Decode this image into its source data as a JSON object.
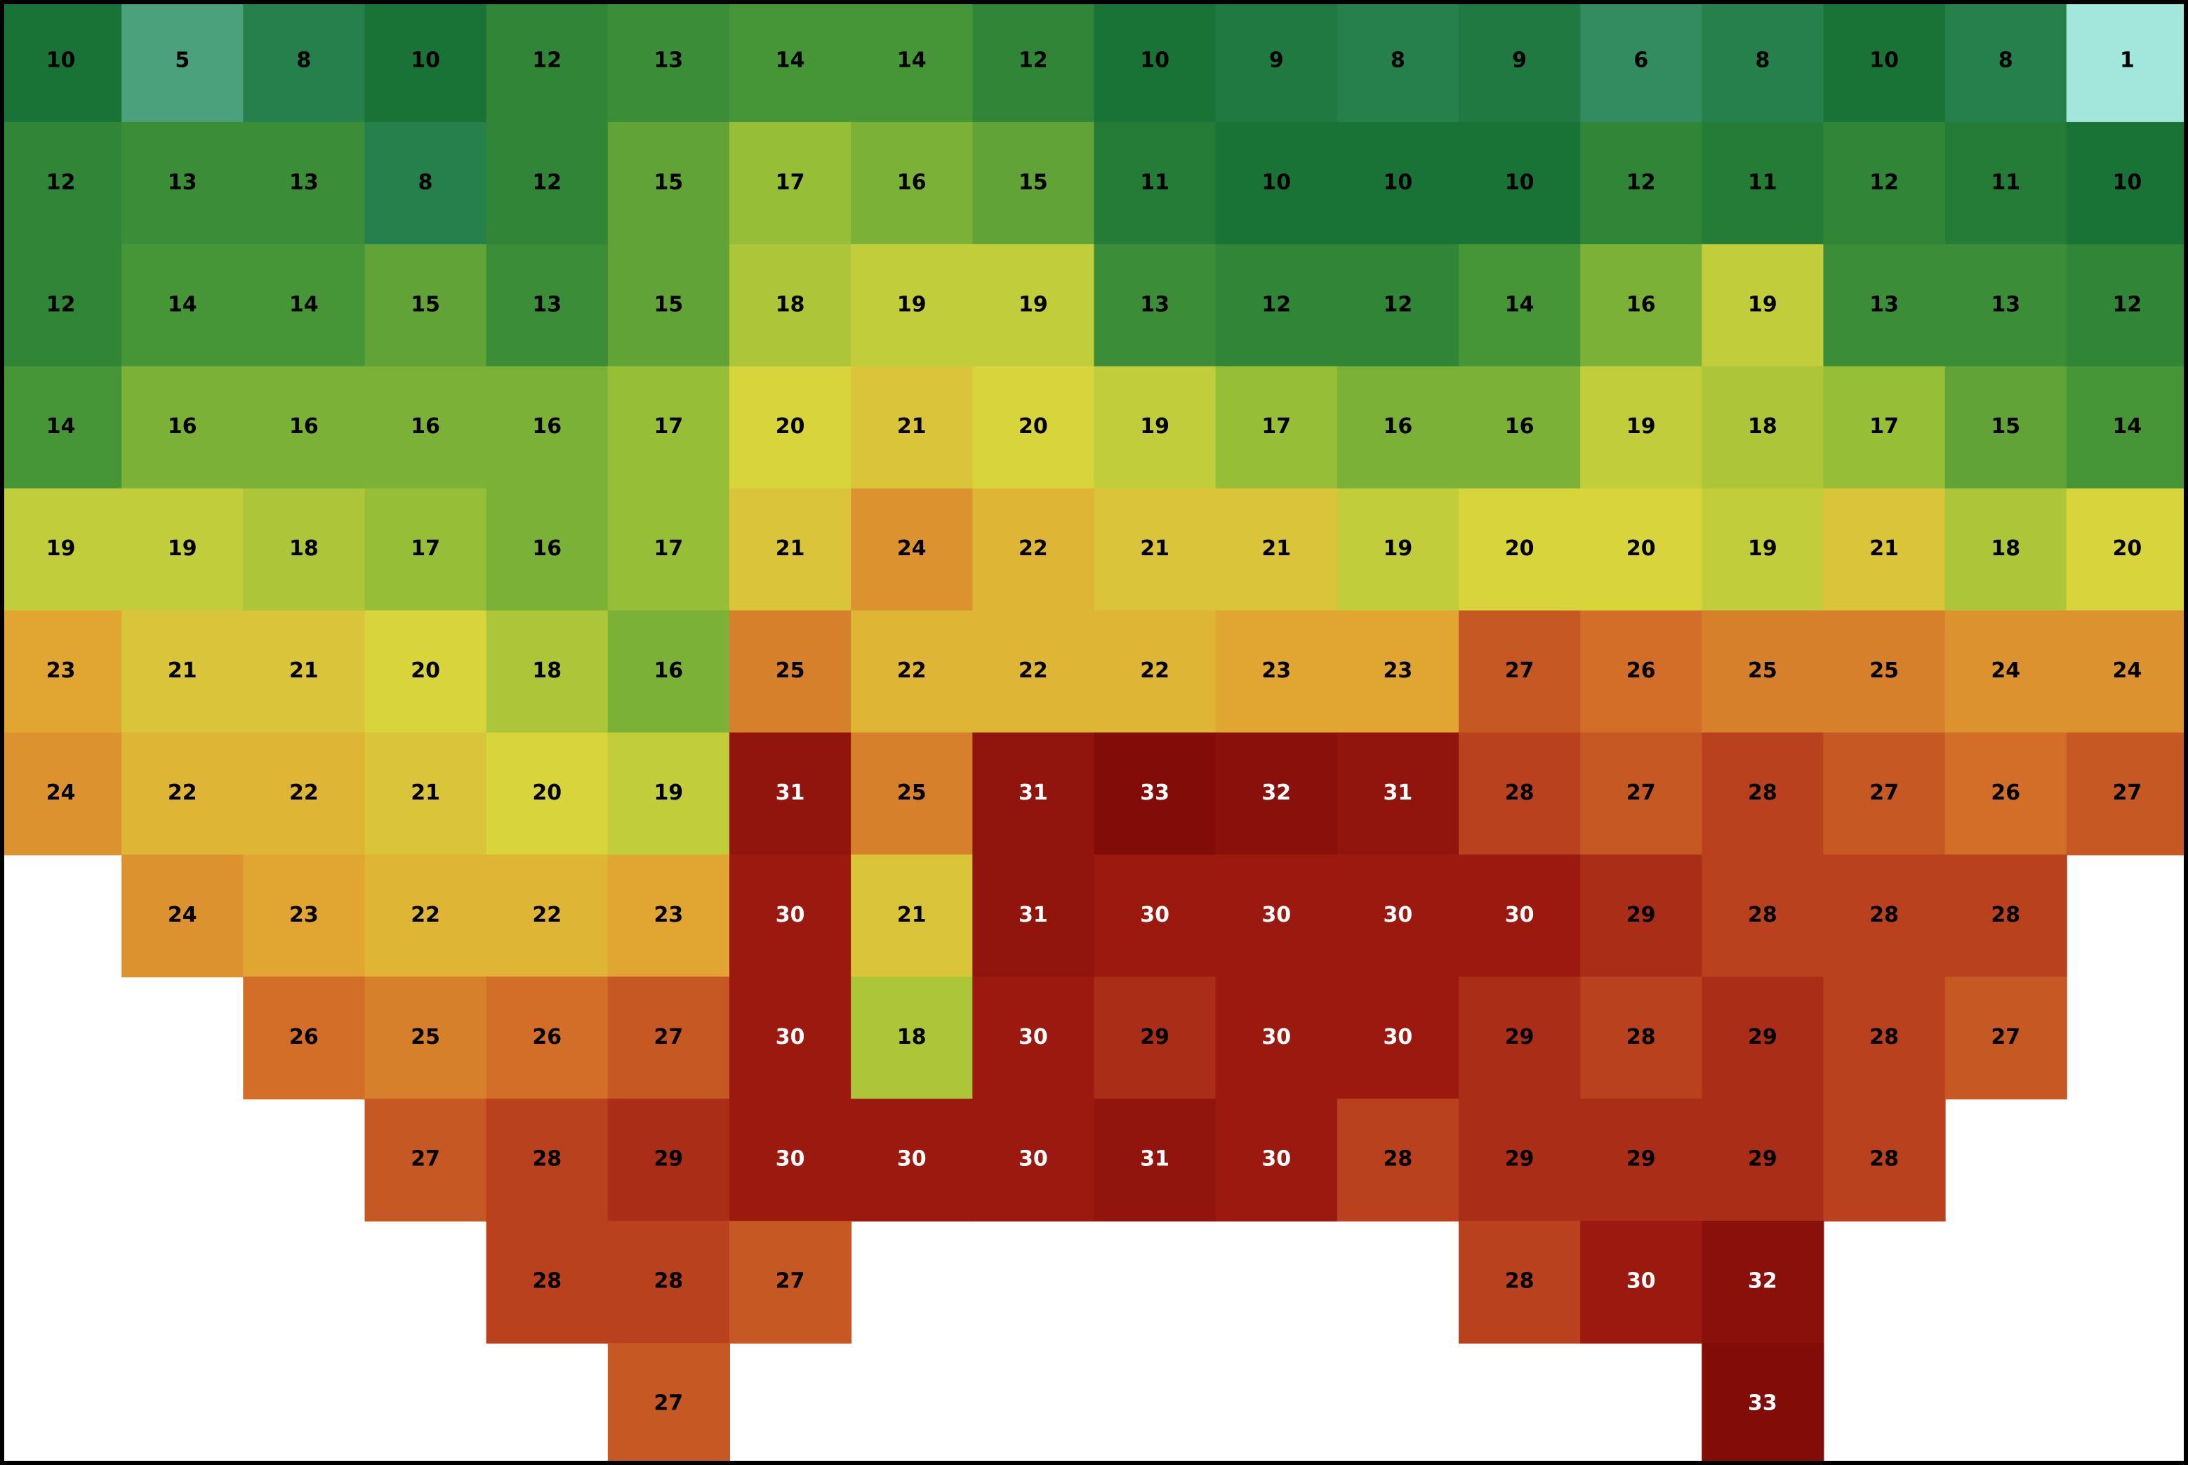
{
  "map": {
    "rows": [
      [
        10,
        5,
        8,
        10,
        12,
        13,
        14,
        14,
        12,
        10,
        9,
        8,
        9,
        6,
        8,
        10,
        8,
        1
      ],
      [
        12,
        13,
        13,
        8,
        12,
        15,
        17,
        16,
        15,
        11,
        10,
        10,
        10,
        12,
        11,
        12,
        11,
        10
      ],
      [
        12,
        14,
        14,
        15,
        13,
        15,
        18,
        19,
        19,
        13,
        12,
        12,
        14,
        16,
        19,
        13,
        13,
        12
      ],
      [
        14,
        16,
        16,
        16,
        16,
        17,
        20,
        21,
        20,
        19,
        17,
        16,
        16,
        19,
        18,
        17,
        15,
        14
      ],
      [
        19,
        19,
        18,
        17,
        16,
        17,
        21,
        24,
        22,
        21,
        21,
        19,
        20,
        20,
        19,
        21,
        18,
        20
      ],
      [
        23,
        21,
        21,
        20,
        18,
        16,
        25,
        22,
        22,
        22,
        23,
        23,
        27,
        26,
        25,
        25,
        24,
        24
      ],
      [
        24,
        22,
        22,
        21,
        20,
        19,
        31,
        25,
        31,
        33,
        32,
        31,
        28,
        27,
        28,
        27,
        26,
        27
      ],
      [
        null,
        24,
        23,
        22,
        22,
        23,
        30,
        21,
        31,
        30,
        30,
        30,
        30,
        29,
        28,
        28,
        28,
        null
      ],
      [
        null,
        null,
        26,
        25,
        26,
        27,
        30,
        18,
        30,
        29,
        30,
        30,
        29,
        28,
        29,
        28,
        27,
        null
      ],
      [
        null,
        null,
        null,
        27,
        28,
        29,
        30,
        30,
        30,
        31,
        30,
        28,
        29,
        29,
        29,
        28,
        null,
        null
      ],
      [
        null,
        null,
        null,
        null,
        28,
        28,
        27,
        null,
        null,
        null,
        null,
        null,
        28,
        30,
        32,
        null,
        null,
        null
      ],
      [
        null,
        null,
        null,
        null,
        null,
        27,
        null,
        null,
        null,
        null,
        null,
        null,
        null,
        null,
        33,
        null,
        null,
        null
      ]
    ]
  }
}
